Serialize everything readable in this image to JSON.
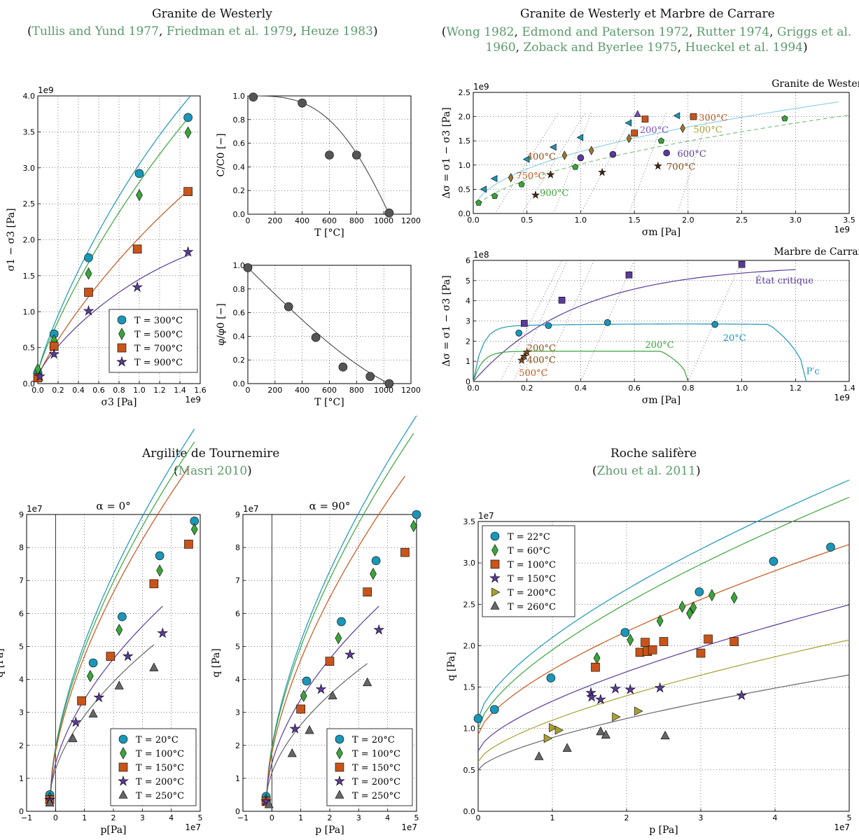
{
  "headers": {
    "granite_title": "Granite de Westerly",
    "granite_refs": [
      "Tullis and Yund 1977",
      "Friedman et al. 1979",
      "Heuze 1983"
    ],
    "marble_title": "Granite de Westerly et Marbre de Carrare",
    "marble_refs_line1": [
      "Wong 1982",
      "Edmond and Paterson 1972",
      "Rutter 1974",
      "Griggs et al."
    ],
    "marble_refs_line2": [
      "1960",
      "Zoback and Byerlee 1975",
      "Hueckel et al. 1994"
    ],
    "argilite_title": "Argilite de Tournemire",
    "argilite_refs": [
      "Masri 2010"
    ],
    "salt_title": "Roche salifère",
    "salt_refs": [
      "Zhou et al. 2011"
    ]
  },
  "colors": {
    "blue": "#1a96b8",
    "green": "#3aa53a",
    "orange": "#c8541a",
    "purple": "#5b3a9a",
    "gray": "#666666",
    "olive": "#a8a030",
    "lightblue": "#8ed0e6",
    "violet": "#7b4cc4",
    "brown": "#8a4a16",
    "reference": "#5b9a6b"
  },
  "chart_data": [
    {
      "id": "westerly_strength",
      "type": "scatter",
      "xlabel": "σ3 [Pa]",
      "ylabel": "σ1 − σ3 [Pa]",
      "xlim": [
        0,
        1.6
      ],
      "ylim": [
        0,
        4.0
      ],
      "x_multiplier": "1e9",
      "y_multiplier": "1e9",
      "xticks": [
        "0.0",
        "0.2",
        "0.4",
        "0.6",
        "0.8",
        "1.0",
        "1.2",
        "1.4",
        "1.6"
      ],
      "yticks": [
        "0.0",
        "0.5",
        "1.0",
        "1.5",
        "2.0",
        "2.5",
        "3.0",
        "3.5",
        "4.0"
      ],
      "grid": true,
      "legend": "lower-right",
      "series": [
        {
          "name": "T = 300°C",
          "color": "#1a96b8",
          "marker": "circle",
          "x": [
            0,
            0.16,
            0.5,
            1.0,
            1.48
          ],
          "y": [
            0.15,
            0.69,
            1.75,
            2.92,
            3.7
          ]
        },
        {
          "name": "T = 500°C",
          "color": "#3aa53a",
          "marker": "diamond",
          "x": [
            0,
            0.16,
            0.5,
            1.0,
            1.48
          ],
          "y": [
            0.2,
            0.6,
            1.53,
            2.62,
            3.49
          ]
        },
        {
          "name": "T = 700°C",
          "color": "#c8541a",
          "marker": "square",
          "x": [
            0,
            0.16,
            0.5,
            0.98,
            1.48
          ],
          "y": [
            0.08,
            0.52,
            1.27,
            1.87,
            2.67
          ]
        },
        {
          "name": "T = 900°C",
          "color": "#5b3a9a",
          "marker": "star",
          "x": [
            0.02,
            0.16,
            0.5,
            0.98,
            1.48
          ],
          "y": [
            0.1,
            0.41,
            1.01,
            1.34,
            1.83
          ]
        }
      ]
    },
    {
      "id": "westerly_cohesion",
      "type": "scatter",
      "xlabel": "T [°C]",
      "ylabel": "C/C0 [−]",
      "xlim": [
        0,
        1200
      ],
      "ylim": [
        0,
        1.0
      ],
      "xticks": [
        "0",
        "200",
        "400",
        "600",
        "800",
        "1000",
        "1200"
      ],
      "yticks": [
        "0.0",
        "0.2",
        "0.4",
        "0.6",
        "0.8",
        "1.0"
      ],
      "grid": true,
      "series": [
        {
          "name": "",
          "color": "#555555",
          "marker": "circle",
          "x": [
            40,
            400,
            600,
            800,
            1040
          ],
          "y": [
            0.99,
            0.94,
            0.5,
            0.5,
            0.01
          ]
        }
      ]
    },
    {
      "id": "westerly_friction",
      "type": "scatter",
      "xlabel": "T [°C]",
      "ylabel": "φ/φ0 [−]",
      "xlim": [
        0,
        1200
      ],
      "ylim": [
        0,
        1.0
      ],
      "xticks": [
        "0",
        "200",
        "400",
        "600",
        "800",
        "1000",
        "1200"
      ],
      "yticks": [
        "0.0",
        "0.2",
        "0.4",
        "0.6",
        "0.8",
        "1.0"
      ],
      "grid": true,
      "series": [
        {
          "name": "",
          "color": "#555555",
          "marker": "circle",
          "x": [
            0,
            300,
            500,
            700,
            900,
            1040
          ],
          "y": [
            0.98,
            0.65,
            0.39,
            0.14,
            0.06,
            0.0
          ]
        }
      ]
    },
    {
      "id": "westerly_critical",
      "type": "scatter",
      "title": "Granite de Westerly",
      "xlabel": "σm [Pa]",
      "ylabel": "Δσ = σ1 − σ3 [Pa]",
      "xlim": [
        0,
        3.5
      ],
      "ylim": [
        0,
        2.5
      ],
      "x_multiplier": "1e9",
      "y_multiplier": "1e9",
      "xticks": [
        "0.0",
        "0.5",
        "1.0",
        "1.5",
        "2.0",
        "2.5",
        "3.0",
        "3.5"
      ],
      "yticks": [
        "0.0",
        "0.5",
        "1.0",
        "1.5",
        "2.0",
        "2.5"
      ],
      "grid": true,
      "annotations": [
        "300°C",
        "500°C",
        "200°C",
        "600°C",
        "400°C",
        "700°C",
        "750°C",
        "900°C"
      ],
      "series": [
        {
          "name": "",
          "color": "#1a96b8",
          "marker": "triangle-left",
          "x": [
            0.1,
            0.2,
            0.5,
            0.75,
            1.0,
            1.45,
            1.9
          ],
          "y": [
            0.5,
            0.72,
            1.12,
            1.37,
            1.57,
            1.87,
            2.02
          ]
        },
        {
          "name": "",
          "color": "#3aa53a",
          "marker": "pentagon",
          "x": [
            0.05,
            0.2,
            0.45,
            0.95,
            1.75,
            2.9
          ],
          "y": [
            0.22,
            0.36,
            0.6,
            0.96,
            1.5,
            1.96
          ]
        },
        {
          "name": "",
          "color": "#c8541a",
          "marker": "square",
          "x": [
            1.5,
            1.6,
            2.05
          ],
          "y": [
            1.66,
            1.95,
            2.0
          ]
        },
        {
          "name": "",
          "color": "#a0782a",
          "marker": "diamond",
          "x": [
            0.35,
            0.85,
            1.1,
            1.45,
            1.95
          ],
          "y": [
            0.74,
            1.2,
            1.3,
            1.55,
            1.76
          ]
        },
        {
          "name": "",
          "color": "#7b4cc4",
          "marker": "triangle-up",
          "x": [
            1.53
          ],
          "y": [
            2.05
          ]
        },
        {
          "name": "",
          "color": "#5b3a9a",
          "marker": "circle",
          "x": [
            1.0,
            1.3,
            1.8
          ],
          "y": [
            1.15,
            1.22,
            1.25
          ]
        },
        {
          "name": "",
          "color": "#4a2a10",
          "marker": "star",
          "x": [
            0.58,
            0.72,
            1.2,
            1.72
          ],
          "y": [
            0.38,
            0.8,
            0.85,
            0.98
          ]
        }
      ]
    },
    {
      "id": "carrare_critical",
      "type": "scatter",
      "title": "Marbre de Carrare",
      "xlabel": "σm [Pa]",
      "ylabel": "Δσ = σ1 − σ3 [Pa]",
      "xlim": [
        0,
        1.4
      ],
      "ylim": [
        0,
        6.0
      ],
      "x_multiplier": "1e9",
      "y_multiplier": "1e8",
      "xticks": [
        "0.0",
        "0.2",
        "0.4",
        "0.6",
        "0.8",
        "1.0",
        "1.2",
        "1.4"
      ],
      "yticks": [
        "0",
        "1",
        "2",
        "3",
        "4",
        "5",
        "6"
      ],
      "grid": true,
      "annotations": [
        "État critique",
        "20°C",
        "200°C",
        "200°C",
        "400°C",
        "500°C",
        "P′c"
      ],
      "series": [
        {
          "name": "État critique",
          "color": "#5b3a9a",
          "marker": "square",
          "x": [
            0.19,
            0.33,
            0.58,
            1.0
          ],
          "y": [
            2.88,
            4.03,
            5.28,
            5.8
          ]
        },
        {
          "name": "20°C",
          "color": "#1a96b8",
          "marker": "circle",
          "x": [
            0.17,
            0.28,
            0.5,
            0.9
          ],
          "y": [
            2.4,
            2.77,
            2.92,
            2.83
          ]
        },
        {
          "name": "",
          "color": "#8a4a16",
          "marker": "star",
          "x": [
            0.18,
            0.19,
            0.2
          ],
          "y": [
            1.05,
            1.25,
            1.45
          ]
        }
      ]
    },
    {
      "id": "tournemire_0",
      "type": "scatter",
      "title": "α = 0°",
      "xlabel": "p[Pa]",
      "ylabel": "q [Pa]",
      "xlim": [
        -1,
        5
      ],
      "ylim": [
        0,
        9
      ],
      "x_multiplier": "1e7",
      "y_multiplier": "1e7",
      "xticks": [
        "−1",
        "0",
        "1",
        "2",
        "3",
        "4",
        "5"
      ],
      "yticks": [
        "0",
        "1",
        "2",
        "3",
        "4",
        "5",
        "6",
        "7",
        "8",
        "9"
      ],
      "grid": true,
      "legend": "lower-right",
      "series": [
        {
          "name": "T = 20°C",
          "color": "#1a96b8",
          "marker": "circle",
          "x": [
            -0.2,
            1.3,
            2.3,
            3.6,
            4.8
          ],
          "y": [
            0.5,
            4.5,
            5.9,
            7.75,
            8.8
          ]
        },
        {
          "name": "T = 100°C",
          "color": "#3aa53a",
          "marker": "diamond",
          "x": [
            -0.2,
            1.2,
            2.2,
            3.6,
            4.8
          ],
          "y": [
            0.4,
            4.1,
            5.5,
            7.3,
            8.55
          ]
        },
        {
          "name": "T = 150°C",
          "color": "#c8541a",
          "marker": "square",
          "x": [
            -0.2,
            0.9,
            1.9,
            3.4,
            4.6
          ],
          "y": [
            0.35,
            3.35,
            4.7,
            6.9,
            8.1
          ]
        },
        {
          "name": "T = 200°C",
          "color": "#5b3a9a",
          "marker": "star",
          "x": [
            -0.2,
            0.7,
            1.5,
            2.5,
            3.7
          ],
          "y": [
            0.35,
            2.7,
            3.45,
            4.7,
            5.4
          ]
        },
        {
          "name": "T = 250°C",
          "color": "#666666",
          "marker": "triangle-up",
          "x": [
            -0.2,
            0.6,
            1.3,
            2.2,
            3.4
          ],
          "y": [
            0.25,
            2.2,
            2.95,
            3.8,
            4.35
          ]
        }
      ]
    },
    {
      "id": "tournemire_90",
      "type": "scatter",
      "title": "α = 90°",
      "xlabel": "p [Pa]",
      "ylabel": "q [Pa]",
      "xlim": [
        -1,
        5
      ],
      "ylim": [
        0,
        9
      ],
      "x_multiplier": "1e7",
      "y_multiplier": "1e7",
      "xticks": [
        "−1",
        "0",
        "1",
        "2",
        "3",
        "4",
        "5"
      ],
      "yticks": [
        "0",
        "1",
        "2",
        "3",
        "4",
        "5",
        "6",
        "7",
        "8",
        "9"
      ],
      "grid": true,
      "legend": "lower-right",
      "series": [
        {
          "name": "T = 20°C",
          "color": "#1a96b8",
          "marker": "circle",
          "x": [
            -0.2,
            1.2,
            2.4,
            3.6,
            5.0
          ],
          "y": [
            0.45,
            3.95,
            5.75,
            7.6,
            9.0
          ]
        },
        {
          "name": "T = 100°C",
          "color": "#3aa53a",
          "marker": "diamond",
          "x": [
            -0.2,
            1.1,
            2.3,
            3.5,
            4.9
          ],
          "y": [
            0.35,
            3.5,
            5.25,
            7.2,
            8.65
          ]
        },
        {
          "name": "T = 150°C",
          "color": "#c8541a",
          "marker": "square",
          "x": [
            -0.2,
            1.0,
            2.0,
            3.3,
            4.6
          ],
          "y": [
            0.3,
            3.1,
            4.55,
            6.65,
            7.85
          ]
        },
        {
          "name": "T = 200°C",
          "color": "#5b3a9a",
          "marker": "star",
          "x": [
            -0.2,
            0.8,
            1.7,
            2.7,
            3.7
          ],
          "y": [
            0.3,
            2.5,
            3.7,
            4.75,
            5.5
          ]
        },
        {
          "name": "T = 250°C",
          "color": "#666666",
          "marker": "triangle-up",
          "x": [
            -0.1,
            0.7,
            1.3,
            2.1,
            3.3
          ],
          "y": [
            0.2,
            1.75,
            2.45,
            3.5,
            3.9
          ]
        }
      ]
    },
    {
      "id": "zhou_salt",
      "type": "scatter",
      "xlabel": "p [Pa]",
      "ylabel": "q [Pa]",
      "xlim": [
        0,
        5
      ],
      "ylim": [
        0,
        3.5
      ],
      "x_multiplier": "1e7",
      "y_multiplier": "1e7",
      "xticks": [
        "0",
        "1",
        "2",
        "3",
        "4",
        "5"
      ],
      "yticks": [
        "0.0",
        "0.5",
        "1.0",
        "1.5",
        "2.0",
        "2.5",
        "3.0",
        "3.5"
      ],
      "grid": true,
      "legend": "upper-left",
      "series": [
        {
          "name": "T = 22°C",
          "color": "#1a96b8",
          "marker": "circle",
          "x": [
            0.0,
            0.22,
            0.98,
            1.98,
            2.98,
            3.98,
            4.75
          ],
          "y": [
            1.12,
            1.23,
            1.61,
            2.16,
            2.65,
            3.02,
            3.19
          ]
        },
        {
          "name": "T = 60°C",
          "color": "#3aa53a",
          "marker": "diamond",
          "x": [
            1.6,
            2.05,
            2.45,
            2.75,
            2.85,
            2.9,
            3.15,
            3.45
          ],
          "y": [
            1.85,
            2.07,
            2.3,
            2.47,
            2.39,
            2.46,
            2.61,
            2.58
          ]
        },
        {
          "name": "T = 100°C",
          "color": "#c8541a",
          "marker": "square",
          "x": [
            1.58,
            2.18,
            2.25,
            2.28,
            2.35,
            2.5,
            3.0,
            3.1,
            3.45
          ],
          "y": [
            1.74,
            1.92,
            2.04,
            1.93,
            1.95,
            2.05,
            1.91,
            2.08,
            2.05
          ]
        },
        {
          "name": "T = 150°C",
          "color": "#5b3a9a",
          "marker": "star",
          "x": [
            1.52,
            1.53,
            1.65,
            1.85,
            2.05,
            2.45,
            3.55
          ],
          "y": [
            1.43,
            1.38,
            1.35,
            1.48,
            1.47,
            1.49,
            1.4
          ]
        },
        {
          "name": "T = 200°C",
          "color": "#a8a030",
          "marker": "triangle-right",
          "x": [
            0.93,
            1.0,
            1.08,
            1.85,
            2.15
          ],
          "y": [
            0.88,
            1.01,
            0.98,
            1.14,
            1.21
          ]
        },
        {
          "name": "T = 260°C",
          "color": "#666666",
          "marker": "triangle-up",
          "x": [
            0.82,
            1.2,
            1.65,
            1.72,
            2.52
          ],
          "y": [
            0.66,
            0.76,
            0.96,
            0.92,
            0.91
          ]
        }
      ]
    }
  ]
}
